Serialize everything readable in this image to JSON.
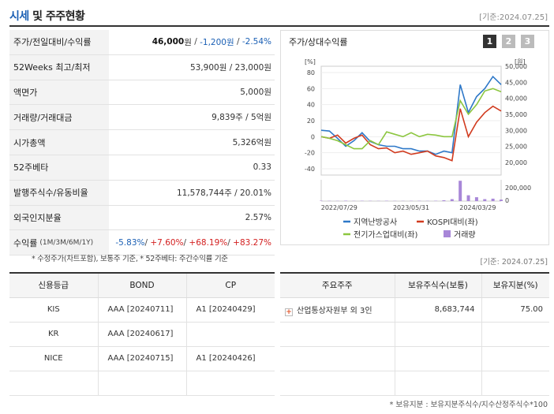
{
  "header": {
    "title_a": "시세",
    "title_b": " 및 주주현황",
    "date": "[기준:2024.07.25]"
  },
  "info": {
    "price_label": "주가/전일대비/수익률",
    "price": "46,000",
    "price_unit": "원",
    "change": "-1,200원",
    "change_pct": "-2.54%",
    "w52_label": "52Weeks 최고/최저",
    "w52_value": "53,900원 / 23,000원",
    "face_label": "액면가",
    "face_value": "5,000원",
    "volume_label": "거래량/거래대금",
    "volume_value": "9,839주 / 5억원",
    "mcap_label": "시가총액",
    "mcap_value": "5,326억원",
    "beta_label": "52주베타",
    "beta_value": "0.33",
    "shares_label": "발행주식수/유동비율",
    "shares_value": "11,578,744주 / 20.01%",
    "foreign_label": "외국인지분율",
    "foreign_value": "2.57%",
    "return_label": "수익률",
    "return_sub": "(1M/3M/6M/1Y)",
    "returns": [
      "-5.83%",
      "+7.60%",
      "+68.19%",
      "+83.27%"
    ]
  },
  "chart_panel": {
    "title": "주가/상대수익률",
    "pages": [
      "1",
      "2",
      "3"
    ]
  },
  "chart_data": {
    "type": "line",
    "left_unit": "[%]",
    "right_unit": "[원]",
    "left_ticks": [
      "80",
      "60",
      "40",
      "20",
      "0",
      "-20",
      "-40"
    ],
    "right_ticks": [
      "50,000",
      "45,000",
      "40,000",
      "35,000",
      "30,000",
      "25,000",
      "20,000"
    ],
    "volume_ticks": [
      "200,000",
      "0"
    ],
    "x_ticks": [
      "2022/07/29",
      "2023/05/31",
      "2024/03/29"
    ],
    "ylim_left": [
      -40,
      80
    ],
    "ylim_right": [
      20000,
      50000
    ],
    "series": [
      {
        "name": "지역난방공사",
        "color": "#2e78c8",
        "axis": "left",
        "values": [
          8,
          7,
          -2,
          -12,
          -5,
          5,
          -6,
          -10,
          -12,
          -12,
          -15,
          -15,
          -18,
          -18,
          -22,
          -18,
          -20,
          65,
          30,
          50,
          60,
          75,
          65
        ]
      },
      {
        "name": "KOSPI대비(좌)",
        "color": "#d13b1f",
        "axis": "left",
        "values": [
          0,
          -2,
          2,
          -8,
          -2,
          2,
          -10,
          -15,
          -14,
          -20,
          -18,
          -22,
          -20,
          -18,
          -24,
          -26,
          -30,
          35,
          0,
          18,
          30,
          38,
          32
        ]
      },
      {
        "name": "전기가스업대비(좌)",
        "color": "#8cc63f",
        "axis": "left",
        "values": [
          0,
          -2,
          -5,
          -10,
          -15,
          -15,
          -5,
          -10,
          6,
          3,
          0,
          5,
          0,
          3,
          2,
          0,
          0,
          45,
          28,
          40,
          57,
          60,
          56
        ]
      },
      {
        "name": "거래량",
        "color": "#a887d8",
        "axis": "volume",
        "values": [
          3000,
          2500,
          2000,
          4000,
          2000,
          3000,
          2500,
          2000,
          3000,
          2000,
          2000,
          2500,
          3000,
          2000,
          3000,
          8000,
          20000,
          210000,
          60000,
          40000,
          20000,
          25000,
          15000
        ]
      }
    ]
  },
  "footnote1": "* 수정주가(차트포함), 보통주 기준, * 52주베타: 주간수익률 기준",
  "date2": "[기준: 2024.07.25]",
  "credit": {
    "headers": [
      "신용등급",
      "BOND",
      "CP"
    ],
    "rows": [
      {
        "agency": "KIS",
        "bond": "AAA [20240711]",
        "cp": "A1 [20240429]"
      },
      {
        "agency": "KR",
        "bond": "AAA [20240617]",
        "cp": ""
      },
      {
        "agency": "NICE",
        "bond": "AAA [20240715]",
        "cp": "A1 [20240426]"
      },
      {
        "agency": "",
        "bond": "",
        "cp": ""
      }
    ]
  },
  "holders": {
    "headers": [
      "주요주주",
      "보유주식수(보통)",
      "보유지분(%)"
    ],
    "rows": [
      {
        "name": "산업통상자원부 외 3인",
        "shares": "8,683,744",
        "pct": "75.00"
      }
    ]
  },
  "footnote2": "* 보유지분 : 보유지분주식수/지수산정주식수*100"
}
